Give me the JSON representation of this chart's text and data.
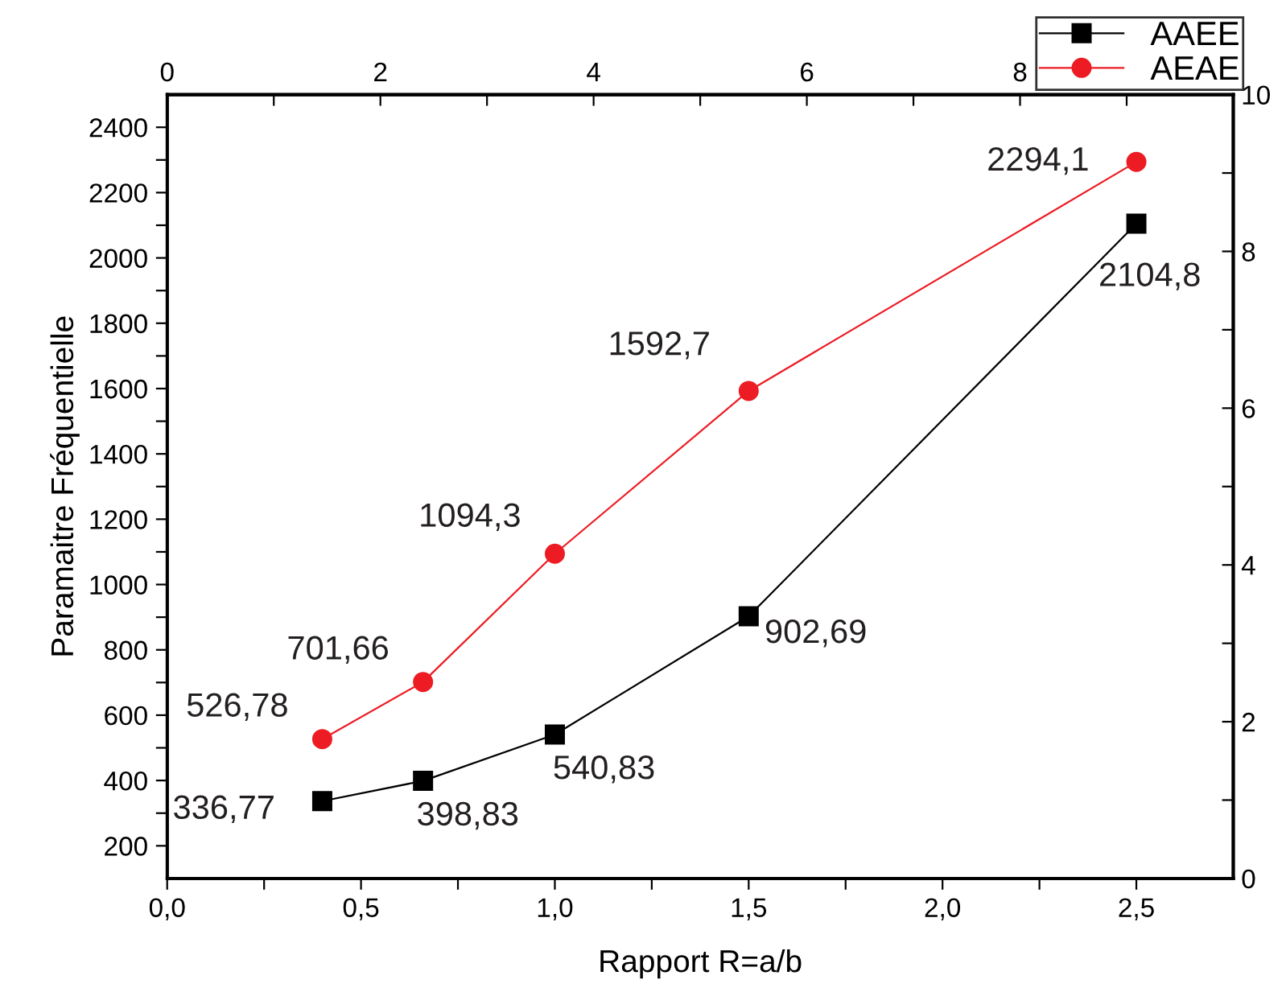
{
  "chart_data": {
    "type": "line",
    "xlabel": "Rapport R=a/b",
    "ylabel": "Paramaitre Fréquentielle",
    "xlim": [
      0,
      2.75
    ],
    "xticks": [
      {
        "value": 0,
        "label": "0,0"
      },
      {
        "value": 0.25,
        "label": null
      },
      {
        "value": 0.5,
        "label": "0,5"
      },
      {
        "value": 0.75,
        "label": null
      },
      {
        "value": 1.0,
        "label": "1,0"
      },
      {
        "value": 1.25,
        "label": null
      },
      {
        "value": 1.5,
        "label": "1,5"
      },
      {
        "value": 1.75,
        "label": null
      },
      {
        "value": 2.0,
        "label": "2,0"
      },
      {
        "value": 2.25,
        "label": null
      },
      {
        "value": 2.5,
        "label": "2,5"
      }
    ],
    "ylim": [
      100,
      2500
    ],
    "yticks": [
      200,
      {
        "value": 300,
        "label": null
      },
      400,
      {
        "value": 500,
        "label": null
      },
      600,
      {
        "value": 700,
        "label": null
      },
      800,
      {
        "value": 900,
        "label": null
      },
      1000,
      {
        "value": 1100,
        "label": null
      },
      1200,
      {
        "value": 1300,
        "label": null
      },
      1400,
      {
        "value": 1500,
        "label": null
      },
      1600,
      {
        "value": 1700,
        "label": null
      },
      1800,
      {
        "value": 1900,
        "label": null
      },
      2000,
      {
        "value": 2100,
        "label": null
      },
      2200,
      {
        "value": 2300,
        "label": null
      },
      2400
    ],
    "x2lim": [
      0,
      10
    ],
    "x2ticks": [
      0,
      {
        "value": 1,
        "label": null
      },
      2,
      {
        "value": 3,
        "label": null
      },
      4,
      {
        "value": 5,
        "label": null
      },
      6,
      {
        "value": 7,
        "label": null
      },
      8,
      {
        "value": 9,
        "label": null
      },
      {
        "value": 10,
        "label": null
      }
    ],
    "y2lim": [
      0,
      10
    ],
    "y2ticks": [
      0,
      {
        "value": 1,
        "label": null
      },
      2,
      {
        "value": 3,
        "label": null
      },
      4,
      {
        "value": 5,
        "label": null
      },
      6,
      {
        "value": 7,
        "label": null
      },
      8,
      {
        "value": 9,
        "label": null
      },
      10
    ],
    "x": [
      0.4,
      0.66,
      1.0,
      1.5,
      2.5
    ],
    "series": [
      {
        "name": "AAEE",
        "color": "#000000",
        "marker": "square",
        "values": [
          336.77,
          398.83,
          540.83,
          902.69,
          2104.8
        ],
        "value_labels": [
          "336,77",
          "398,83",
          "540,83",
          "902,69",
          "2104,8"
        ]
      },
      {
        "name": "AEAE",
        "color": "#ed1c24",
        "marker": "circle",
        "values": [
          526.78,
          701.66,
          1094.3,
          1592.7,
          2294.1
        ],
        "value_labels": [
          "526,78",
          "701,66",
          "1094,3",
          "1592,7",
          "2294,1"
        ]
      }
    ],
    "legend": "top right",
    "grid": false,
    "line_style": "solid"
  }
}
